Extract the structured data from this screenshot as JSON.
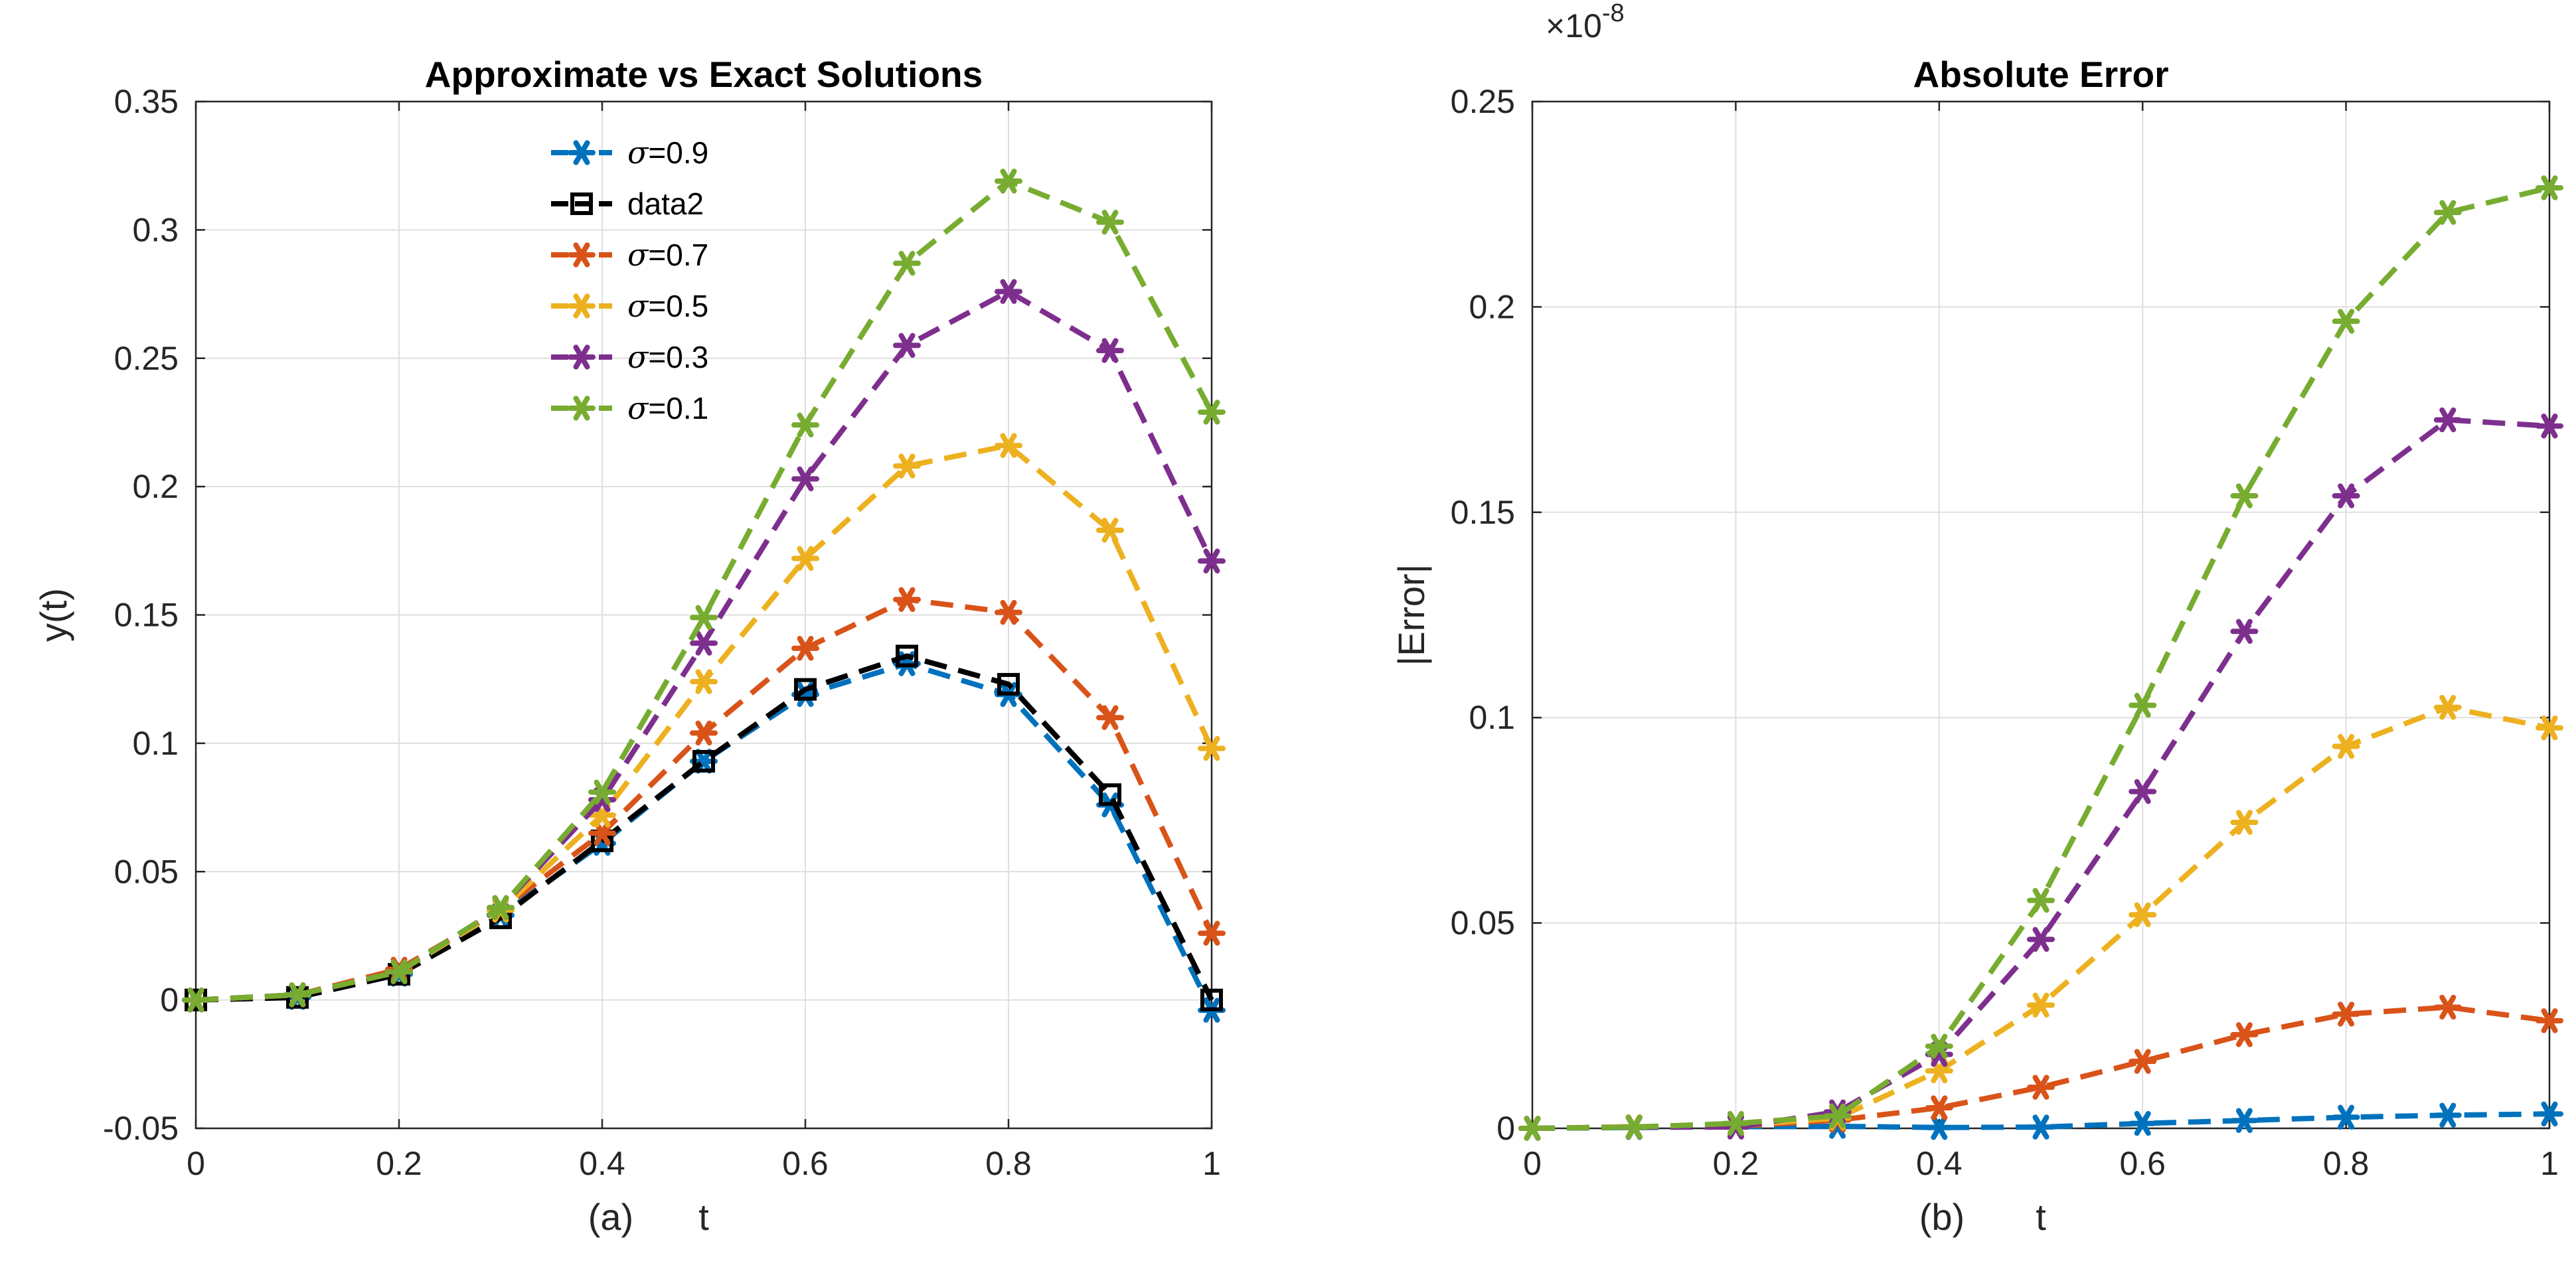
{
  "chart_data": [
    {
      "type": "line",
      "panel_label": "(a)",
      "title": "Approximate vs Exact Solutions",
      "xlabel": "t",
      "ylabel": "y(t)",
      "xlim": [
        0,
        1
      ],
      "ylim": [
        -0.05,
        0.35
      ],
      "xticks": [
        0,
        0.2,
        0.4,
        0.6,
        0.8,
        1
      ],
      "xtick_labels": [
        "0",
        "0.2",
        "0.4",
        "0.6",
        "0.8",
        "1"
      ],
      "yticks": [
        -0.05,
        0,
        0.05,
        0.1,
        0.15,
        0.2,
        0.25,
        0.3,
        0.35
      ],
      "ytick_labels": [
        "-0.05",
        "0",
        "0.05",
        "0.1",
        "0.15",
        "0.2",
        "0.25",
        "0.3",
        "0.35"
      ],
      "grid": true,
      "legend_position": "top-center",
      "x": [
        0,
        0.1,
        0.2,
        0.3,
        0.4,
        0.5,
        0.6,
        0.7,
        0.8,
        0.9,
        1.0
      ],
      "series": [
        {
          "name": "=0.9",
          "sigma": true,
          "color": "#0072BD",
          "marker": "asterisk",
          "values": [
            0,
            0.001,
            0.01,
            0.033,
            0.061,
            0.093,
            0.119,
            0.131,
            0.119,
            0.076,
            -0.004
          ]
        },
        {
          "name": "data2",
          "sigma": false,
          "color": "#000000",
          "marker": "square",
          "values": [
            0,
            0.001,
            0.01,
            0.032,
            0.062,
            0.093,
            0.121,
            0.134,
            0.123,
            0.08,
            0.0
          ]
        },
        {
          "name": "=0.7",
          "sigma": true,
          "color": "#D95319",
          "marker": "asterisk",
          "values": [
            0,
            0.002,
            0.012,
            0.035,
            0.065,
            0.104,
            0.137,
            0.156,
            0.151,
            0.11,
            0.026
          ]
        },
        {
          "name": "=0.5",
          "sigma": true,
          "color": "#EDB120",
          "marker": "asterisk",
          "values": [
            0,
            0.002,
            0.011,
            0.035,
            0.072,
            0.124,
            0.172,
            0.208,
            0.216,
            0.183,
            0.098
          ]
        },
        {
          "name": "=0.3",
          "sigma": true,
          "color": "#7E2F8E",
          "marker": "asterisk",
          "values": [
            0,
            0.002,
            0.011,
            0.036,
            0.078,
            0.139,
            0.203,
            0.255,
            0.276,
            0.253,
            0.171
          ]
        },
        {
          "name": "=0.1",
          "sigma": true,
          "color": "#77AC30",
          "marker": "asterisk",
          "values": [
            0,
            0.002,
            0.011,
            0.036,
            0.081,
            0.149,
            0.224,
            0.287,
            0.319,
            0.303,
            0.229
          ]
        }
      ]
    },
    {
      "type": "line",
      "panel_label": "(b)",
      "title": "Absolute Error",
      "xlabel": "t",
      "ylabel": "|Error|",
      "exponent_base": "×10",
      "exponent_power": "-8",
      "xlim": [
        0,
        1
      ],
      "ylim": [
        0,
        0.25
      ],
      "xticks": [
        0,
        0.2,
        0.4,
        0.6,
        0.8,
        1
      ],
      "xtick_labels": [
        "0",
        "0.2",
        "0.4",
        "0.6",
        "0.8",
        "1"
      ],
      "yticks": [
        0,
        0.05,
        0.1,
        0.15,
        0.2,
        0.25
      ],
      "ytick_labels": [
        "0",
        "0.05",
        "0.1",
        "0.15",
        "0.2",
        "0.25"
      ],
      "grid": true,
      "x": [
        0,
        0.1,
        0.2,
        0.3,
        0.4,
        0.5,
        0.6,
        0.7,
        0.8,
        0.9,
        1.0
      ],
      "series": [
        {
          "name": "=0.9",
          "color": "#0072BD",
          "marker": "asterisk",
          "values": [
            0,
            0.0002,
            0.0004,
            0.0005,
            0.0002,
            0.0003,
            0.0012,
            0.0019,
            0.0027,
            0.0032,
            0.0035
          ]
        },
        {
          "name": "=0.7",
          "color": "#D95319",
          "marker": "asterisk",
          "values": [
            0,
            0.0003,
            0.0005,
            0.002,
            0.005,
            0.01,
            0.0163,
            0.0228,
            0.0278,
            0.0295,
            0.0262
          ]
        },
        {
          "name": "=0.5",
          "color": "#EDB120",
          "marker": "asterisk",
          "values": [
            0,
            0.0004,
            0.0007,
            0.0025,
            0.014,
            0.03,
            0.052,
            0.0745,
            0.093,
            0.1025,
            0.0975
          ]
        },
        {
          "name": "=0.3",
          "color": "#7E2F8E",
          "marker": "asterisk",
          "values": [
            0,
            0.0003,
            0.0003,
            0.004,
            0.018,
            0.046,
            0.082,
            0.121,
            0.154,
            0.1725,
            0.171
          ]
        },
        {
          "name": "=0.1",
          "color": "#77AC30",
          "marker": "asterisk",
          "values": [
            0,
            0.0003,
            0.0012,
            0.003,
            0.02,
            0.0555,
            0.103,
            0.154,
            0.1965,
            0.223,
            0.229
          ]
        }
      ]
    }
  ]
}
